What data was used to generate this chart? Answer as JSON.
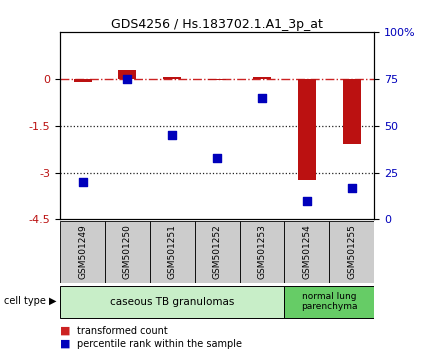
{
  "title": "GDS4256 / Hs.183702.1.A1_3p_at",
  "samples": [
    "GSM501249",
    "GSM501250",
    "GSM501251",
    "GSM501252",
    "GSM501253",
    "GSM501254",
    "GSM501255"
  ],
  "transformed_count": [
    -0.1,
    0.28,
    0.05,
    -0.05,
    0.07,
    -3.25,
    -2.1
  ],
  "percentile_rank": [
    20,
    75,
    45,
    33,
    65,
    10,
    17
  ],
  "left_ylim": [
    -4.5,
    1.5
  ],
  "right_ylim": [
    0,
    100
  ],
  "left_yticks": [
    0,
    -1.5,
    -3,
    -4.5
  ],
  "right_yticks": [
    0,
    25,
    50,
    75,
    100
  ],
  "left_ytick_labels": [
    "0",
    "-1.5",
    "-3",
    "-4.5"
  ],
  "right_ytick_labels": [
    "0",
    "25",
    "50",
    "75",
    "100%"
  ],
  "bar_color": "#bb1111",
  "scatter_color": "#0000bb",
  "hline_color": "#cc2222",
  "dotline_color": "#222222",
  "group1_color": "#c8eec8",
  "group2_color": "#66cc66",
  "group1_label": "caseous TB granulomas",
  "group2_label": "normal lung\nparenchyma",
  "legend_bar_color": "#cc2222",
  "legend_dot_color": "#0000bb"
}
